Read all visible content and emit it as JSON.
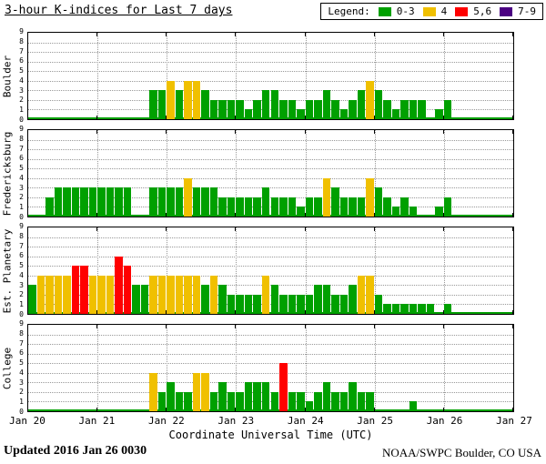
{
  "title": "3-hour K-indices for Last 7 days",
  "legend": {
    "label": "Legend:",
    "items": [
      {
        "label": "0-3",
        "color": "#00A000"
      },
      {
        "label": "4",
        "color": "#F0C000"
      },
      {
        "label": "5,6",
        "color": "#FF0000"
      },
      {
        "label": "7-9",
        "color": "#4B0082"
      }
    ]
  },
  "colors": {
    "green": "#00A000",
    "yellow": "#F0C000",
    "red": "#FF0000",
    "purple": "#4B0082",
    "grid": "#999999"
  },
  "footer": {
    "updated": "Updated 2016 Jan 26 0030",
    "source": "NOAA/SWPC Boulder, CO USA"
  },
  "chart_data": {
    "type": "bar",
    "title": "3-hour K-indices for Last 7 days",
    "xlabel": "Coordinate Universal Time (UTC)",
    "ylabel": "",
    "x_tick_labels": [
      "Jan 20",
      "Jan 21",
      "Jan 22",
      "Jan 23",
      "Jan 24",
      "Jan 25",
      "Jan 26",
      "Jan 27"
    ],
    "y_ticks": [
      0,
      1,
      2,
      3,
      4,
      5,
      6,
      7,
      8,
      9
    ],
    "ylim": [
      0,
      9
    ],
    "days": 7,
    "bars_per_day": 8,
    "bar_interval_hours": 3,
    "grid": true,
    "legend_position": "top-right",
    "color_bins": {
      "green": "0-3",
      "yellow": "4",
      "red": "5,6",
      "purple": "7-9"
    },
    "series": [
      {
        "name": "Boulder",
        "values": [
          0,
          0,
          0,
          0,
          0,
          0,
          0,
          0,
          0,
          0,
          0,
          0,
          0,
          0,
          3,
          3,
          4,
          3,
          4,
          4,
          3,
          2,
          2,
          2,
          2,
          1,
          2,
          3,
          3,
          2,
          2,
          1,
          2,
          2,
          3,
          2,
          1,
          2,
          3,
          4,
          3,
          2,
          1,
          2,
          2,
          2,
          0,
          1,
          2,
          0,
          0,
          0,
          0,
          0,
          0,
          0
        ]
      },
      {
        "name": "Fredericksburg",
        "values": [
          0,
          0,
          2,
          3,
          3,
          3,
          3,
          3,
          3,
          3,
          3,
          3,
          0,
          0,
          3,
          3,
          3,
          3,
          4,
          3,
          3,
          3,
          2,
          2,
          2,
          2,
          2,
          3,
          2,
          2,
          2,
          1,
          2,
          2,
          4,
          3,
          2,
          2,
          2,
          4,
          3,
          2,
          1,
          2,
          1,
          0,
          0,
          1,
          2,
          0,
          0,
          0,
          0,
          0,
          0,
          0
        ]
      },
      {
        "name": "Est. Planetary",
        "values": [
          3,
          4,
          4,
          4,
          4,
          5,
          5,
          4,
          4,
          4,
          6,
          5,
          3,
          3,
          4,
          4,
          4,
          4,
          4,
          4,
          3,
          4,
          3,
          2,
          2,
          2,
          2,
          4,
          3,
          2,
          2,
          2,
          2,
          3,
          3,
          2,
          2,
          3,
          4,
          4,
          2,
          1,
          1,
          1,
          1,
          1,
          1,
          0,
          1,
          0,
          0,
          0,
          0,
          0,
          0,
          0
        ]
      },
      {
        "name": "College",
        "values": [
          0,
          0,
          0,
          0,
          0,
          0,
          0,
          0,
          0,
          0,
          0,
          0,
          0,
          0,
          4,
          2,
          3,
          2,
          2,
          4,
          4,
          2,
          3,
          2,
          2,
          3,
          3,
          3,
          2,
          5,
          2,
          2,
          1,
          2,
          3,
          2,
          2,
          3,
          2,
          2,
          0,
          0,
          0,
          0,
          1,
          0,
          0,
          0,
          0,
          0,
          0,
          0,
          0,
          0,
          0,
          0
        ]
      }
    ]
  }
}
